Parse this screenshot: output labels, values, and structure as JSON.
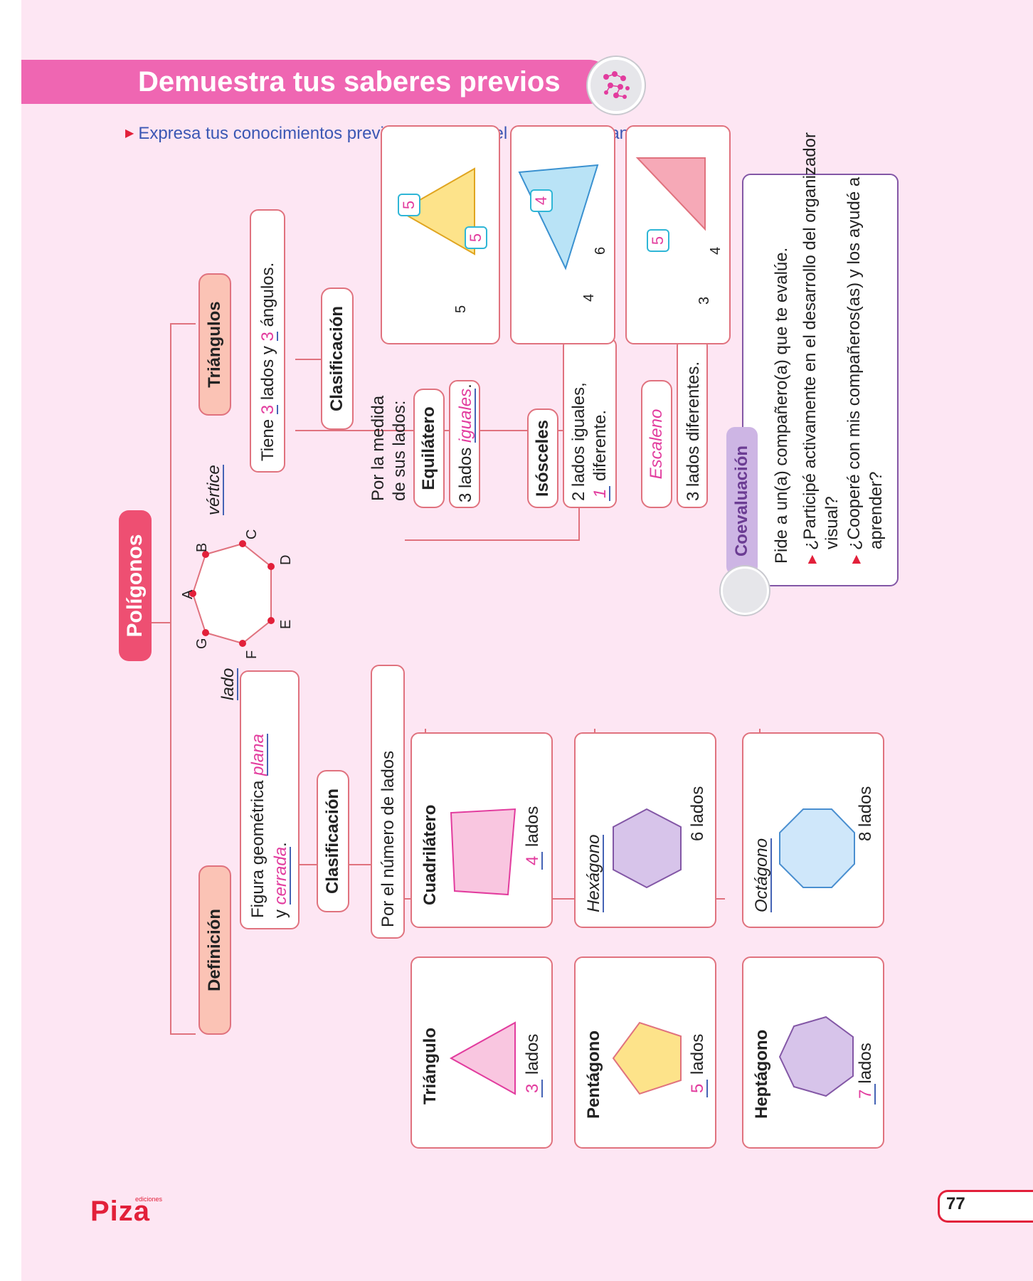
{
  "header": {
    "title": "Demuestra tus saberes previos",
    "icon": "network-icon"
  },
  "instruction": "Expresa tus conocimientos previos y completa el siguiente organizador visual.",
  "diagram": {
    "root": "Polígonos",
    "polygon_vertices": [
      "A",
      "B",
      "C",
      "D",
      "E",
      "F",
      "G"
    ],
    "vertex_label": "vértice",
    "side_label": "lado",
    "definicion": {
      "title": "Definición",
      "text_prefix": "Figura geométrica ",
      "blank_1": "plana",
      "text_mid": "y ",
      "blank_2": "cerrada",
      "text_end": ".",
      "clasificacion": "Clasificación",
      "criterion": "Por el número de lados",
      "lados_word": "lados",
      "items": [
        {
          "name": "Triángulo",
          "sides": "3",
          "color": "#f9c6e0"
        },
        {
          "name": "Cuadrilátero",
          "sides": "4",
          "color": "#f9c6e0"
        },
        {
          "name": "Pentágono",
          "sides": "5",
          "color": "#fde38a"
        },
        {
          "name": "Hexágono",
          "sides": "6",
          "color": "#d7c4ea"
        },
        {
          "name": "Heptágono",
          "sides": "7",
          "color": "#d7c4ea"
        },
        {
          "name": "Octágono",
          "sides": "8",
          "color": "#cfe7fa"
        }
      ]
    },
    "triangulos": {
      "title": "Triángulos",
      "desc_1": "Tiene ",
      "blank_1": "3",
      "desc_2": " lados y ",
      "blank_2": "3",
      "desc_3": " ángulos.",
      "clasificacion": "Clasificación",
      "criterion_1": "Por la medida",
      "criterion_2": "de sus lados:",
      "types": [
        {
          "name": "Equilátero",
          "desc_1": "3 lados ",
          "blank": "iguales",
          "desc_2": ".",
          "side_a": "5",
          "side_b": "5",
          "side_c": "5",
          "color": "#fde38a"
        },
        {
          "name": "Isósceles",
          "desc_1": "2 lados iguales,",
          "blank": "1",
          "desc_2": " diferente.",
          "side_a": "4",
          "side_b": "4",
          "side_c": "6",
          "color": "#b9e3f6"
        },
        {
          "name": "Escaleno",
          "desc_1": "3 lados diferentes.",
          "side_a": "3",
          "side_b": "4",
          "side_c": "5",
          "color": "#f6a9b7"
        }
      ]
    },
    "coevaluacion": {
      "title": "Coevaluación",
      "intro": "Pide a un(a) compañero(a) que te evalúe.",
      "q1_l1": "¿Participé activamente en el desarrollo del organizador",
      "q1_l2": "visual?",
      "q2_l1": "¿Cooperé con mis compañeros(as) y los ayudé a",
      "q2_l2": "aprender?"
    }
  },
  "footer": {
    "page_number": "77",
    "logo": "Piza",
    "logo_small": "ediciones"
  }
}
